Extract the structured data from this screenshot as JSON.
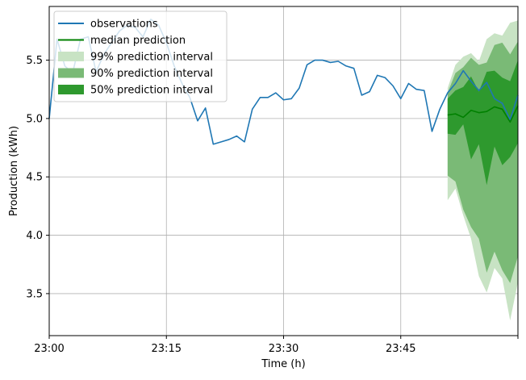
{
  "chart_data": {
    "type": "line",
    "title": "",
    "xlabel": "Time (h)",
    "ylabel": "Production (kWh)",
    "xlim": [
      0,
      60
    ],
    "ylim": [
      3.14,
      5.96
    ],
    "grid": true,
    "legend_position": "top-left",
    "x_ticks": [
      {
        "value": 0,
        "label": "23:00"
      },
      {
        "value": 15,
        "label": "23:15"
      },
      {
        "value": 30,
        "label": "23:30"
      },
      {
        "value": 45,
        "label": "23:45"
      }
    ],
    "y_ticks": [
      {
        "value": 3.5,
        "label": "3.5"
      },
      {
        "value": 4.0,
        "label": "4.0"
      },
      {
        "value": 4.5,
        "label": "4.5"
      },
      {
        "value": 5.0,
        "label": "5.0"
      },
      {
        "value": 5.5,
        "label": "5.5"
      }
    ],
    "colors": {
      "observations": "#1f77b4",
      "median": "#008000",
      "band99": "#c8e3c4",
      "band90": "#7aba76",
      "band50": "#2e992e"
    },
    "legend": {
      "observations": "observations",
      "median": "median prediction",
      "band99": "99% prediction interval",
      "band90": "90% prediction interval",
      "band50": "50% prediction interval"
    },
    "observations": {
      "x": [
        0,
        1,
        2,
        3,
        4,
        5,
        6,
        7,
        8,
        9,
        10,
        11,
        12,
        13,
        14,
        15,
        16,
        17,
        18,
        19,
        20,
        21,
        22,
        23,
        24,
        25,
        26,
        27,
        28,
        29,
        30,
        31,
        32,
        33,
        34,
        35,
        36,
        37,
        38,
        39,
        40,
        41,
        42,
        43,
        44,
        45,
        46,
        47,
        48,
        49,
        50,
        51,
        52,
        53,
        54,
        55,
        56,
        57,
        58,
        59,
        60
      ],
      "y": [
        5.0,
        5.68,
        5.45,
        5.39,
        5.68,
        5.7,
        5.4,
        5.55,
        5.65,
        5.75,
        5.8,
        5.78,
        5.7,
        5.85,
        5.8,
        5.65,
        5.45,
        5.3,
        5.18,
        4.98,
        5.09,
        4.78,
        4.8,
        4.82,
        4.85,
        4.8,
        5.08,
        5.18,
        5.18,
        5.22,
        5.16,
        5.17,
        5.26,
        5.46,
        5.5,
        5.5,
        5.48,
        5.49,
        5.45,
        5.43,
        5.2,
        5.23,
        5.37,
        5.35,
        5.28,
        5.17,
        5.3,
        5.25,
        5.24,
        4.89,
        5.08,
        5.22,
        5.3,
        5.41,
        5.32,
        5.24,
        5.31,
        5.17,
        5.13,
        4.99,
        5.2
      ]
    },
    "forecast": {
      "x": [
        51,
        52,
        53,
        54,
        55,
        56,
        57,
        58,
        59,
        60
      ],
      "median": [
        5.03,
        5.04,
        5.01,
        5.07,
        5.05,
        5.06,
        5.1,
        5.08,
        4.97,
        5.11
      ],
      "q50_low": [
        4.87,
        4.86,
        4.95,
        4.65,
        4.78,
        4.43,
        4.76,
        4.6,
        4.67,
        4.79
      ],
      "q50_high": [
        5.17,
        5.24,
        5.27,
        5.36,
        5.23,
        5.4,
        5.41,
        5.35,
        5.32,
        5.5
      ],
      "q90_low": [
        4.51,
        4.46,
        4.22,
        4.07,
        3.97,
        3.68,
        3.86,
        3.7,
        3.59,
        3.82
      ],
      "q90_high": [
        5.22,
        5.39,
        5.44,
        5.52,
        5.46,
        5.48,
        5.63,
        5.65,
        5.55,
        5.66
      ],
      "q99_low": [
        4.3,
        4.4,
        4.17,
        3.97,
        3.65,
        3.51,
        3.72,
        3.63,
        3.27,
        3.6
      ],
      "q99_high": [
        5.26,
        5.46,
        5.53,
        5.56,
        5.49,
        5.68,
        5.73,
        5.71,
        5.82,
        5.84
      ]
    }
  }
}
